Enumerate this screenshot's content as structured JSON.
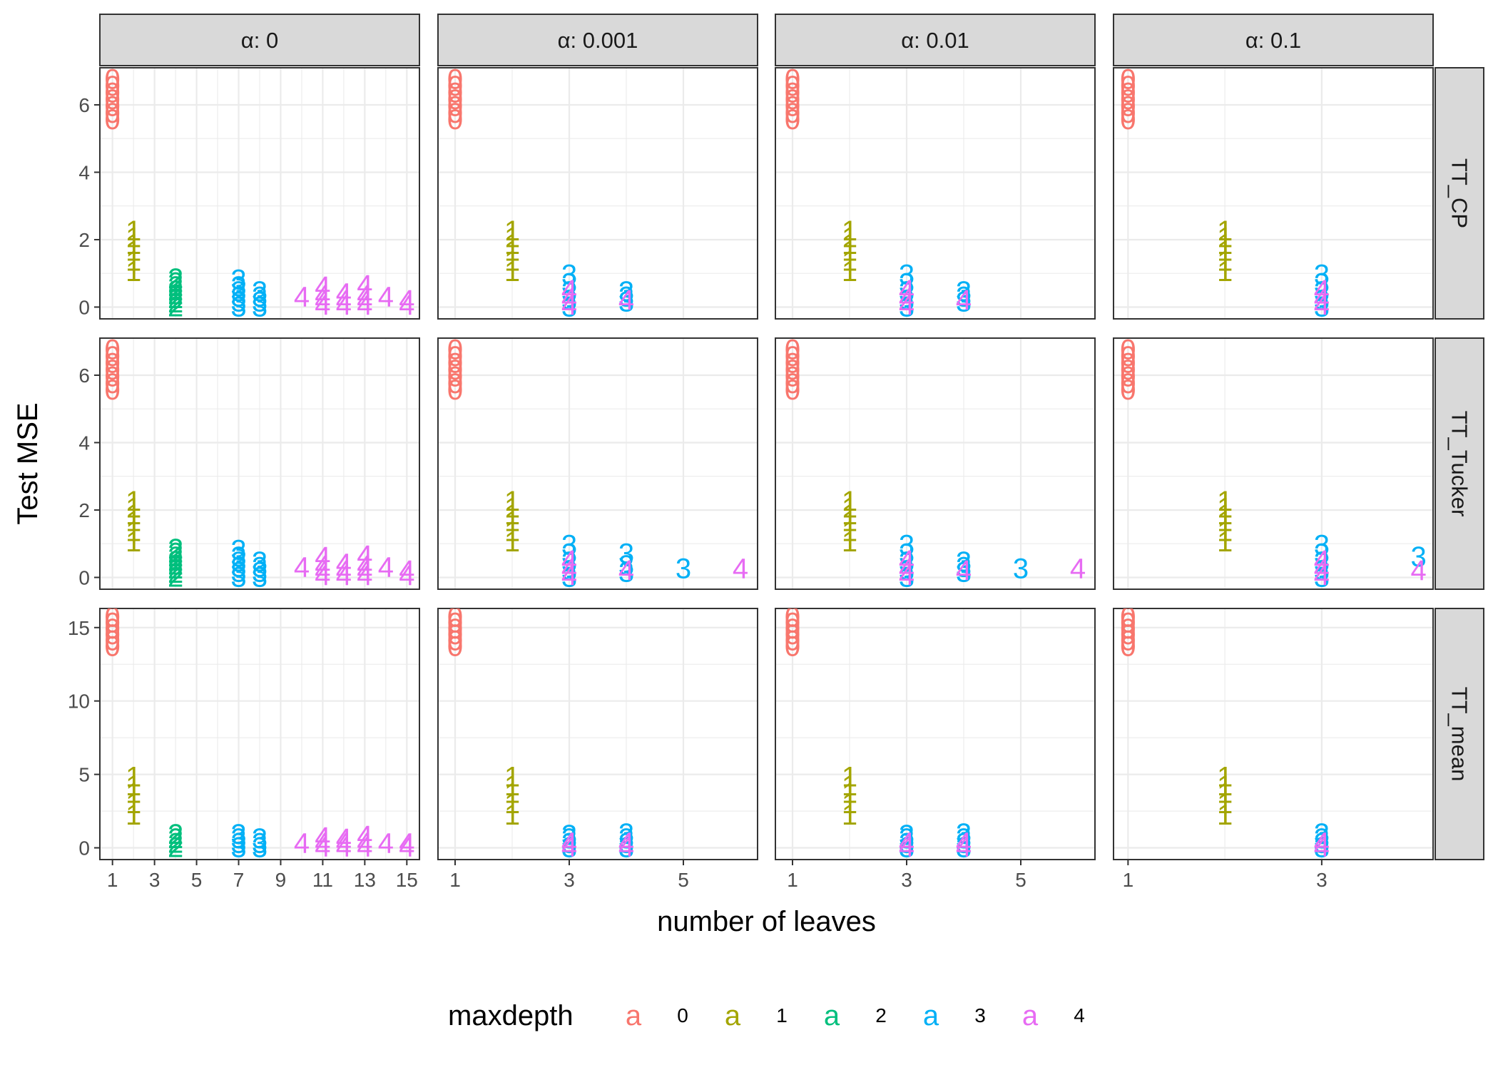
{
  "chart_data": {
    "type": "scatter",
    "xlabel": "number of leaves",
    "ylabel": "Test MSE",
    "legend": {
      "title": "maxdepth",
      "placement": "bottom",
      "key_glyph": "a",
      "items": [
        {
          "name": "0",
          "color": "#F8766D"
        },
        {
          "name": "1",
          "color": "#A3A500"
        },
        {
          "name": "2",
          "color": "#00BF7D"
        },
        {
          "name": "3",
          "color": "#00B0F6"
        },
        {
          "name": "4",
          "color": "#E76BF3"
        }
      ]
    },
    "grid": true,
    "column_facets": [
      "α: 0",
      "α: 0.001",
      "α: 0.01",
      "α: 0.1"
    ],
    "row_facets": [
      "TT_CP",
      "TT_Tucker",
      "TT_mean"
    ],
    "col_xlim": [
      [
        0.4,
        15.6
      ],
      [
        0.7,
        6.3
      ],
      [
        0.7,
        6.3
      ],
      [
        0.85,
        4.15
      ]
    ],
    "col_xticks": [
      [
        1,
        3,
        5,
        7,
        9,
        11,
        13,
        15
      ],
      [
        1,
        3,
        5
      ],
      [
        1,
        3,
        5
      ],
      [
        1,
        3
      ]
    ],
    "row_ylim": [
      [
        -0.35,
        7.1
      ],
      [
        -0.35,
        7.1
      ],
      [
        -0.8,
        16.3
      ]
    ],
    "row_yticks": [
      [
        0,
        2,
        4,
        6
      ],
      [
        0,
        2,
        4,
        6
      ],
      [
        0,
        5,
        10,
        15
      ]
    ],
    "point_labels": [
      "0",
      "1",
      "2",
      "3",
      "4"
    ],
    "panels": [
      {
        "row": "TT_CP",
        "col": "α: 0",
        "points": [
          {
            "maxdepth": 0,
            "x": 1,
            "y": [
              5.55,
              5.75,
              5.95,
              6.15,
              6.35,
              6.55,
              6.75
            ]
          },
          {
            "maxdepth": 1,
            "x": 2,
            "y": [
              1.05,
              1.35,
              1.65,
              1.85,
              2.05,
              2.25
            ]
          },
          {
            "maxdepth": 2,
            "x": 4,
            "y": [
              0.0,
              0.12,
              0.24,
              0.36,
              0.48,
              0.6,
              0.72,
              0.84
            ]
          },
          {
            "maxdepth": 3,
            "x": 7,
            "y": [
              0.0,
              0.15,
              0.3,
              0.45,
              0.6,
              0.8
            ]
          },
          {
            "maxdepth": 3,
            "x": 8,
            "y": [
              0.0,
              0.15,
              0.3,
              0.45
            ]
          },
          {
            "maxdepth": 4,
            "x": 10,
            "y": [
              0.3
            ]
          },
          {
            "maxdepth": 4,
            "x": 11,
            "y": [
              0.05,
              0.2,
              0.35,
              0.6
            ]
          },
          {
            "maxdepth": 4,
            "x": 12,
            "y": [
              0.05,
              0.2,
              0.4
            ]
          },
          {
            "maxdepth": 4,
            "x": 13,
            "y": [
              0.05,
              0.2,
              0.35,
              0.65
            ]
          },
          {
            "maxdepth": 4,
            "x": 14,
            "y": [
              0.3
            ]
          },
          {
            "maxdepth": 4,
            "x": 15,
            "y": [
              0.05,
              0.2
            ]
          }
        ]
      },
      {
        "row": "TT_CP",
        "col": "α: 0.001",
        "points": [
          {
            "maxdepth": 0,
            "x": 1,
            "y": [
              5.55,
              5.75,
              5.95,
              6.15,
              6.35,
              6.55,
              6.75
            ]
          },
          {
            "maxdepth": 1,
            "x": 2,
            "y": [
              1.05,
              1.35,
              1.65,
              1.85,
              2.05,
              2.25
            ]
          },
          {
            "maxdepth": 3,
            "x": 3,
            "y": [
              0.0,
              0.2,
              0.45,
              0.7,
              0.95
            ]
          },
          {
            "maxdepth": 4,
            "x": 3,
            "y": [
              0.05,
              0.25,
              0.5
            ]
          },
          {
            "maxdepth": 3,
            "x": 4,
            "y": [
              0.15,
              0.3,
              0.45
            ]
          },
          {
            "maxdepth": 4,
            "x": 4,
            "y": [
              0.2
            ]
          }
        ]
      },
      {
        "row": "TT_CP",
        "col": "α: 0.01",
        "points": [
          {
            "maxdepth": 0,
            "x": 1,
            "y": [
              5.55,
              5.75,
              5.95,
              6.15,
              6.35,
              6.55,
              6.75
            ]
          },
          {
            "maxdepth": 1,
            "x": 2,
            "y": [
              1.05,
              1.35,
              1.65,
              1.85,
              2.05,
              2.25
            ]
          },
          {
            "maxdepth": 3,
            "x": 3,
            "y": [
              0.0,
              0.2,
              0.45,
              0.7,
              0.95
            ]
          },
          {
            "maxdepth": 4,
            "x": 3,
            "y": [
              0.05,
              0.25,
              0.5
            ]
          },
          {
            "maxdepth": 3,
            "x": 4,
            "y": [
              0.15,
              0.3,
              0.45
            ]
          },
          {
            "maxdepth": 4,
            "x": 4,
            "y": [
              0.2
            ]
          }
        ]
      },
      {
        "row": "TT_CP",
        "col": "α: 0.1",
        "points": [
          {
            "maxdepth": 0,
            "x": 1,
            "y": [
              5.55,
              5.75,
              5.95,
              6.15,
              6.35,
              6.55,
              6.75
            ]
          },
          {
            "maxdepth": 1,
            "x": 2,
            "y": [
              1.05,
              1.35,
              1.65,
              1.85,
              2.05,
              2.25
            ]
          },
          {
            "maxdepth": 3,
            "x": 3,
            "y": [
              0.0,
              0.2,
              0.45,
              0.7,
              0.95
            ]
          },
          {
            "maxdepth": 4,
            "x": 3,
            "y": [
              0.05,
              0.25,
              0.5
            ]
          }
        ]
      },
      {
        "row": "TT_Tucker",
        "col": "α: 0",
        "points": [
          {
            "maxdepth": 0,
            "x": 1,
            "y": [
              5.55,
              5.75,
              5.95,
              6.15,
              6.35,
              6.55,
              6.75
            ]
          },
          {
            "maxdepth": 1,
            "x": 2,
            "y": [
              1.05,
              1.35,
              1.65,
              1.85,
              2.05,
              2.25
            ]
          },
          {
            "maxdepth": 2,
            "x": 4,
            "y": [
              0.0,
              0.12,
              0.24,
              0.36,
              0.48,
              0.6,
              0.72,
              0.84
            ]
          },
          {
            "maxdepth": 3,
            "x": 7,
            "y": [
              0.0,
              0.15,
              0.3,
              0.45,
              0.6,
              0.8
            ]
          },
          {
            "maxdepth": 3,
            "x": 8,
            "y": [
              0.0,
              0.15,
              0.3,
              0.45
            ]
          },
          {
            "maxdepth": 4,
            "x": 10,
            "y": [
              0.3
            ]
          },
          {
            "maxdepth": 4,
            "x": 11,
            "y": [
              0.05,
              0.2,
              0.35,
              0.6
            ]
          },
          {
            "maxdepth": 4,
            "x": 12,
            "y": [
              0.05,
              0.2,
              0.4
            ]
          },
          {
            "maxdepth": 4,
            "x": 13,
            "y": [
              0.05,
              0.2,
              0.35,
              0.65
            ]
          },
          {
            "maxdepth": 4,
            "x": 14,
            "y": [
              0.3
            ]
          },
          {
            "maxdepth": 4,
            "x": 15,
            "y": [
              0.05,
              0.2
            ]
          }
        ]
      },
      {
        "row": "TT_Tucker",
        "col": "α: 0.001",
        "points": [
          {
            "maxdepth": 0,
            "x": 1,
            "y": [
              5.55,
              5.75,
              5.95,
              6.15,
              6.35,
              6.55,
              6.75
            ]
          },
          {
            "maxdepth": 1,
            "x": 2,
            "y": [
              1.05,
              1.35,
              1.65,
              1.85,
              2.05,
              2.25
            ]
          },
          {
            "maxdepth": 3,
            "x": 3,
            "y": [
              0.0,
              0.2,
              0.45,
              0.7,
              0.95
            ]
          },
          {
            "maxdepth": 4,
            "x": 3,
            "y": [
              0.05,
              0.25,
              0.5
            ]
          },
          {
            "maxdepth": 3,
            "x": 4,
            "y": [
              0.15,
              0.35,
              0.7
            ]
          },
          {
            "maxdepth": 4,
            "x": 4,
            "y": [
              0.2
            ]
          },
          {
            "maxdepth": 3,
            "x": 5,
            "y": [
              0.25
            ]
          },
          {
            "maxdepth": 4,
            "x": 6,
            "y": [
              0.25
            ]
          }
        ]
      },
      {
        "row": "TT_Tucker",
        "col": "α: 0.01",
        "points": [
          {
            "maxdepth": 0,
            "x": 1,
            "y": [
              5.55,
              5.75,
              5.95,
              6.15,
              6.35,
              6.55,
              6.75
            ]
          },
          {
            "maxdepth": 1,
            "x": 2,
            "y": [
              1.05,
              1.35,
              1.65,
              1.85,
              2.05,
              2.25
            ]
          },
          {
            "maxdepth": 3,
            "x": 3,
            "y": [
              0.0,
              0.2,
              0.45,
              0.7,
              0.95
            ]
          },
          {
            "maxdepth": 4,
            "x": 3,
            "y": [
              0.05,
              0.25,
              0.5
            ]
          },
          {
            "maxdepth": 3,
            "x": 4,
            "y": [
              0.15,
              0.3,
              0.45
            ]
          },
          {
            "maxdepth": 4,
            "x": 4,
            "y": [
              0.2
            ]
          },
          {
            "maxdepth": 3,
            "x": 5,
            "y": [
              0.25
            ]
          },
          {
            "maxdepth": 4,
            "x": 6,
            "y": [
              0.25
            ]
          }
        ]
      },
      {
        "row": "TT_Tucker",
        "col": "α: 0.1",
        "points": [
          {
            "maxdepth": 0,
            "x": 1,
            "y": [
              5.55,
              5.75,
              5.95,
              6.15,
              6.35,
              6.55,
              6.75
            ]
          },
          {
            "maxdepth": 1,
            "x": 2,
            "y": [
              1.05,
              1.35,
              1.65,
              1.85,
              2.05,
              2.25
            ]
          },
          {
            "maxdepth": 3,
            "x": 3,
            "y": [
              0.0,
              0.2,
              0.45,
              0.7,
              0.95
            ]
          },
          {
            "maxdepth": 4,
            "x": 3,
            "y": [
              0.05,
              0.25,
              0.5
            ]
          },
          {
            "maxdepth": 3,
            "x": 4,
            "y": [
              0.6
            ]
          },
          {
            "maxdepth": 4,
            "x": 4,
            "y": [
              0.2
            ]
          }
        ]
      },
      {
        "row": "TT_mean",
        "col": "α: 0",
        "points": [
          {
            "maxdepth": 0,
            "x": 1,
            "y": [
              13.7,
              14.1,
              14.5,
              14.9,
              15.3,
              15.7
            ]
          },
          {
            "maxdepth": 1,
            "x": 2,
            "y": [
              2.2,
              3.0,
              3.7,
              4.2,
              4.8
            ]
          },
          {
            "maxdepth": 2,
            "x": 4,
            "y": [
              0.0,
              0.3,
              0.6,
              0.9
            ]
          },
          {
            "maxdepth": 3,
            "x": 7,
            "y": [
              0.0,
              0.3,
              0.6,
              0.9
            ]
          },
          {
            "maxdepth": 3,
            "x": 8,
            "y": [
              0.0,
              0.3,
              0.6
            ]
          },
          {
            "maxdepth": 4,
            "x": 10,
            "y": [
              0.3
            ]
          },
          {
            "maxdepth": 4,
            "x": 11,
            "y": [
              0.05,
              0.35,
              0.7
            ]
          },
          {
            "maxdepth": 4,
            "x": 12,
            "y": [
              0.05,
              0.35,
              0.6
            ]
          },
          {
            "maxdepth": 4,
            "x": 13,
            "y": [
              0.05,
              0.35,
              0.8
            ]
          },
          {
            "maxdepth": 4,
            "x": 14,
            "y": [
              0.3
            ]
          },
          {
            "maxdepth": 4,
            "x": 15,
            "y": [
              0.05,
              0.3
            ]
          }
        ]
      },
      {
        "row": "TT_mean",
        "col": "α: 0.001",
        "points": [
          {
            "maxdepth": 0,
            "x": 1,
            "y": [
              13.7,
              14.1,
              14.5,
              14.9,
              15.3,
              15.7
            ]
          },
          {
            "maxdepth": 1,
            "x": 2,
            "y": [
              2.2,
              3.0,
              3.7,
              4.2,
              4.8
            ]
          },
          {
            "maxdepth": 3,
            "x": 3,
            "y": [
              0.0,
              0.3,
              0.6,
              0.85
            ]
          },
          {
            "maxdepth": 4,
            "x": 3,
            "y": [
              0.05,
              0.35
            ]
          },
          {
            "maxdepth": 3,
            "x": 4,
            "y": [
              0.0,
              0.3,
              0.6,
              0.95
            ]
          },
          {
            "maxdepth": 4,
            "x": 4,
            "y": [
              0.05,
              0.35
            ]
          }
        ]
      },
      {
        "row": "TT_mean",
        "col": "α: 0.01",
        "points": [
          {
            "maxdepth": 0,
            "x": 1,
            "y": [
              13.7,
              14.1,
              14.5,
              14.9,
              15.3,
              15.7
            ]
          },
          {
            "maxdepth": 1,
            "x": 2,
            "y": [
              2.2,
              3.0,
              3.7,
              4.2,
              4.8
            ]
          },
          {
            "maxdepth": 3,
            "x": 3,
            "y": [
              0.0,
              0.3,
              0.6,
              0.85
            ]
          },
          {
            "maxdepth": 4,
            "x": 3,
            "y": [
              0.05,
              0.35
            ]
          },
          {
            "maxdepth": 3,
            "x": 4,
            "y": [
              0.0,
              0.3,
              0.6,
              0.95
            ]
          },
          {
            "maxdepth": 4,
            "x": 4,
            "y": [
              0.05,
              0.35
            ]
          }
        ]
      },
      {
        "row": "TT_mean",
        "col": "α: 0.1",
        "points": [
          {
            "maxdepth": 0,
            "x": 1,
            "y": [
              13.7,
              14.1,
              14.5,
              14.9,
              15.3,
              15.7
            ]
          },
          {
            "maxdepth": 1,
            "x": 2,
            "y": [
              2.2,
              3.0,
              3.7,
              4.2,
              4.8
            ]
          },
          {
            "maxdepth": 3,
            "x": 3,
            "y": [
              0.0,
              0.3,
              0.6,
              0.95
            ]
          },
          {
            "maxdepth": 4,
            "x": 3,
            "y": [
              0.05,
              0.35
            ]
          }
        ]
      }
    ]
  }
}
